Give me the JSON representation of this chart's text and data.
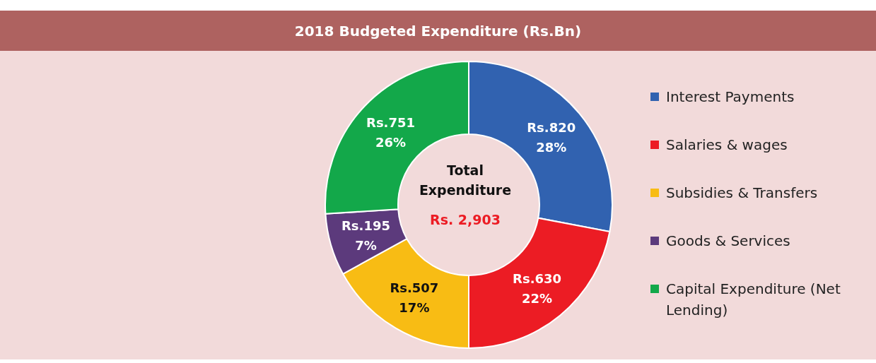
{
  "chart_data": {
    "type": "donut",
    "title": "2018 Budgeted Expenditure (Rs.Bn)",
    "categories": [
      "Interest Payments",
      "Salaries & wages",
      "Subsidies & Transfers",
      "Goods & Services",
      "Capital Expenditure (Net Lending)"
    ],
    "values": [
      28,
      22,
      17,
      7,
      26
    ],
    "colors": [
      "#3162b0",
      "#ec1c24",
      "#f8bc14",
      "#5c3a7c",
      "#13a84a"
    ],
    "value_labels": [
      "28%",
      "22%",
      "17%",
      "7%",
      "26%"
    ],
    "annotations": [
      "Total Expenditure",
      "Rs. 2,903",
      {
        "text": "Rs.820",
        "x": "Interest Payments"
      },
      {
        "text": "Rs.630",
        "x": "Salaries & wages"
      },
      {
        "text": "Rs.507",
        "x": "Subsidies & Transfers"
      },
      {
        "text": "Rs.195",
        "x": "Goods & Services"
      },
      {
        "text": "Rs.751",
        "x": "Capital Expenditure (Net Lending)"
      }
    ],
    "legend": "right"
  }
}
